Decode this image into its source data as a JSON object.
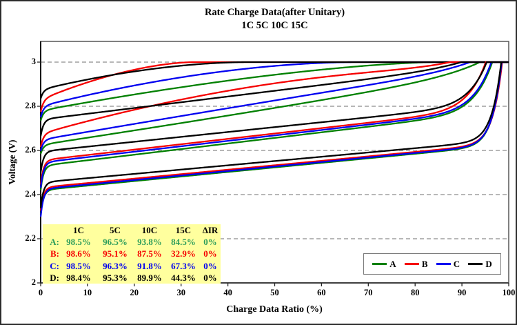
{
  "figure": {
    "title_line1": "Rate Charge Data(after Unitary)",
    "title_line2": "1C 5C 10C 15C"
  },
  "axes": {
    "x_label": "Charge Data Ratio (%)",
    "y_label": "Voltage (V)",
    "x_ticks": [
      "0",
      "10",
      "20",
      "30",
      "40",
      "50",
      "60",
      "70",
      "80",
      "90",
      "100"
    ],
    "y_ticks": [
      "2",
      "2.2",
      "2.4",
      "2.6",
      "2.8",
      "3"
    ],
    "grid_color": "#8c8c8c"
  },
  "legend": {
    "items": [
      {
        "label": "A",
        "color": "#008000"
      },
      {
        "label": "B",
        "color": "#f50000"
      },
      {
        "label": "C",
        "color": "#0000f0"
      },
      {
        "label": "D",
        "color": "#000000"
      }
    ]
  },
  "table": {
    "background": "#ffff9e",
    "headers": [
      "1C",
      "5C",
      "10C",
      "15C",
      "ΔIR"
    ],
    "rows": [
      {
        "label": "A:",
        "color": "#2e9e5b",
        "values": [
          "98.5%",
          "96.5%",
          "93.8%",
          "84.5%",
          "0%"
        ]
      },
      {
        "label": "B:",
        "color": "#f50000",
        "values": [
          "98.6%",
          "95.1%",
          "87.5%",
          "32.9%",
          "0%"
        ]
      },
      {
        "label": "C:",
        "color": "#0000f0",
        "values": [
          "98.5%",
          "96.3%",
          "91.8%",
          "67.3%",
          "0%"
        ]
      },
      {
        "label": "D:",
        "color": "#000000",
        "values": [
          "98.4%",
          "95.3%",
          "89.9%",
          "44.3%",
          "0%"
        ]
      }
    ]
  },
  "chart_data": {
    "type": "line",
    "title": "Rate Charge Data(after Unitary) 1C 5C 10C 15C",
    "xlabel": "Charge Data Ratio (%)",
    "ylabel": "Voltage (V)",
    "xlim": [
      0,
      100
    ],
    "ylim": [
      2,
      3.08
    ],
    "x_tick_values": [
      0,
      10,
      20,
      30,
      40,
      50,
      60,
      70,
      80,
      90,
      100
    ],
    "y_tick_values": [
      2,
      2.2,
      2.4,
      2.6,
      2.8,
      3
    ],
    "grid_y_values": [
      2.2,
      2.4,
      2.6,
      2.8,
      3.0
    ],
    "charge_voltage_limit_V": 3.0,
    "cc_charge_ratio_percent": {
      "A": {
        "1C": 98.5,
        "5C": 96.5,
        "10C": 93.8,
        "15C": 84.5
      },
      "B": {
        "1C": 98.6,
        "5C": 95.1,
        "10C": 87.5,
        "15C": 32.9
      },
      "C": {
        "1C": 98.5,
        "5C": 96.3,
        "10C": 91.8,
        "15C": 67.3
      },
      "D": {
        "1C": 98.4,
        "5C": 95.3,
        "10C": 89.9,
        "15C": 44.3
      }
    },
    "delta_IR_percent": {
      "A": 0,
      "B": 0,
      "C": 0,
      "D": 0
    },
    "series": [
      {
        "name": "A-15C",
        "cell": "A",
        "rate": "15C",
        "color": "#008000",
        "end_ratio": 84.5,
        "v_start": 2.735,
        "v_knee": 2.78,
        "shape": {
          "w": 1.0,
          "q": 1.5,
          "n": 8,
          "dip": 0.045,
          "tau": 0.6
        }
      },
      {
        "name": "B-15C",
        "cell": "B",
        "rate": "15C",
        "color": "#f50000",
        "end_ratio": 32.9,
        "v_start": 2.775,
        "v_knee": 2.83,
        "shape": {
          "w": 1.0,
          "q": 1.7,
          "n": 8,
          "dip": 0.055,
          "tau": 0.6
        }
      },
      {
        "name": "C-15C",
        "cell": "C",
        "rate": "15C",
        "color": "#0000f0",
        "end_ratio": 67.3,
        "v_start": 2.75,
        "v_knee": 2.8,
        "shape": {
          "w": 1.0,
          "q": 1.8,
          "n": 8,
          "dip": 0.05,
          "tau": 0.6
        }
      },
      {
        "name": "D-15C",
        "cell": "D",
        "rate": "15C",
        "color": "#000000",
        "end_ratio": 44.3,
        "v_start": 2.835,
        "v_knee": 2.875,
        "shape": {
          "w": 1.0,
          "q": 1.8,
          "n": 8,
          "dip": 0.04,
          "tau": 0.6
        }
      },
      {
        "name": "A-10C",
        "cell": "A",
        "rate": "10C",
        "color": "#008000",
        "end_ratio": 93.8,
        "v_start": 2.585,
        "v_knee": 2.625,
        "shape": {
          "w": 0.9,
          "q": 0.9,
          "n": 12,
          "dip": 0.04,
          "tau": 0.6
        }
      },
      {
        "name": "B-10C",
        "cell": "B",
        "rate": "10C",
        "color": "#f50000",
        "end_ratio": 87.5,
        "v_start": 2.615,
        "v_knee": 2.675,
        "shape": {
          "w": 0.9,
          "q": 1.8,
          "n": 12,
          "dip": 0.06,
          "tau": 0.6
        }
      },
      {
        "name": "C-10C",
        "cell": "C",
        "rate": "10C",
        "color": "#0000f0",
        "end_ratio": 91.8,
        "v_start": 2.598,
        "v_knee": 2.648,
        "shape": {
          "w": 0.9,
          "q": 1.05,
          "n": 12,
          "dip": 0.05,
          "tau": 0.6
        }
      },
      {
        "name": "D-10C",
        "cell": "D",
        "rate": "10C",
        "color": "#000000",
        "end_ratio": 89.9,
        "v_start": 2.665,
        "v_knee": 2.74,
        "shape": {
          "w": 0.9,
          "q": 1.0,
          "n": 12,
          "dip": 0.075,
          "tau": 0.6
        }
      },
      {
        "name": "A-5C",
        "cell": "A",
        "rate": "5C",
        "color": "#008000",
        "end_ratio": 96.5,
        "v_start": 2.42,
        "v_knee": 2.53,
        "shape": {
          "w": 0.52,
          "q": 1.0,
          "n": 25,
          "dip": 0.11,
          "tau": 0.6
        }
      },
      {
        "name": "B-5C",
        "cell": "B",
        "rate": "5C",
        "color": "#f50000",
        "end_ratio": 95.1,
        "v_start": 2.445,
        "v_knee": 2.555,
        "shape": {
          "w": 0.52,
          "q": 1.0,
          "n": 25,
          "dip": 0.11,
          "tau": 0.6
        }
      },
      {
        "name": "C-5C",
        "cell": "C",
        "rate": "5C",
        "color": "#0000f0",
        "end_ratio": 96.3,
        "v_start": 2.43,
        "v_knee": 2.545,
        "shape": {
          "w": 0.52,
          "q": 1.0,
          "n": 25,
          "dip": 0.115,
          "tau": 0.6
        }
      },
      {
        "name": "D-5C",
        "cell": "D",
        "rate": "5C",
        "color": "#000000",
        "end_ratio": 95.3,
        "v_start": 2.5,
        "v_knee": 2.595,
        "shape": {
          "w": 0.52,
          "q": 1.0,
          "n": 25,
          "dip": 0.095,
          "tau": 0.6
        }
      },
      {
        "name": "A-1C",
        "cell": "A",
        "rate": "1C",
        "color": "#008000",
        "end_ratio": 98.5,
        "v_start": 2.31,
        "v_knee": 2.42,
        "shape": {
          "w": 0.35,
          "q": 1.0,
          "n": 50,
          "dip": 0.11,
          "tau": 0.6
        }
      },
      {
        "name": "B-1C",
        "cell": "B",
        "rate": "1C",
        "color": "#f50000",
        "end_ratio": 98.6,
        "v_start": 2.327,
        "v_knee": 2.432,
        "shape": {
          "w": 0.35,
          "q": 1.0,
          "n": 50,
          "dip": 0.105,
          "tau": 0.6
        }
      },
      {
        "name": "C-1C",
        "cell": "C",
        "rate": "1C",
        "color": "#0000f0",
        "end_ratio": 98.5,
        "v_start": 2.3,
        "v_knee": 2.425,
        "shape": {
          "w": 0.35,
          "q": 1.0,
          "n": 50,
          "dip": 0.125,
          "tau": 0.6
        }
      },
      {
        "name": "D-1C",
        "cell": "D",
        "rate": "1C",
        "color": "#000000",
        "end_ratio": 98.4,
        "v_start": 2.34,
        "v_knee": 2.455,
        "shape": {
          "w": 0.35,
          "q": 1.0,
          "n": 50,
          "dip": 0.115,
          "tau": 0.6
        }
      }
    ]
  }
}
